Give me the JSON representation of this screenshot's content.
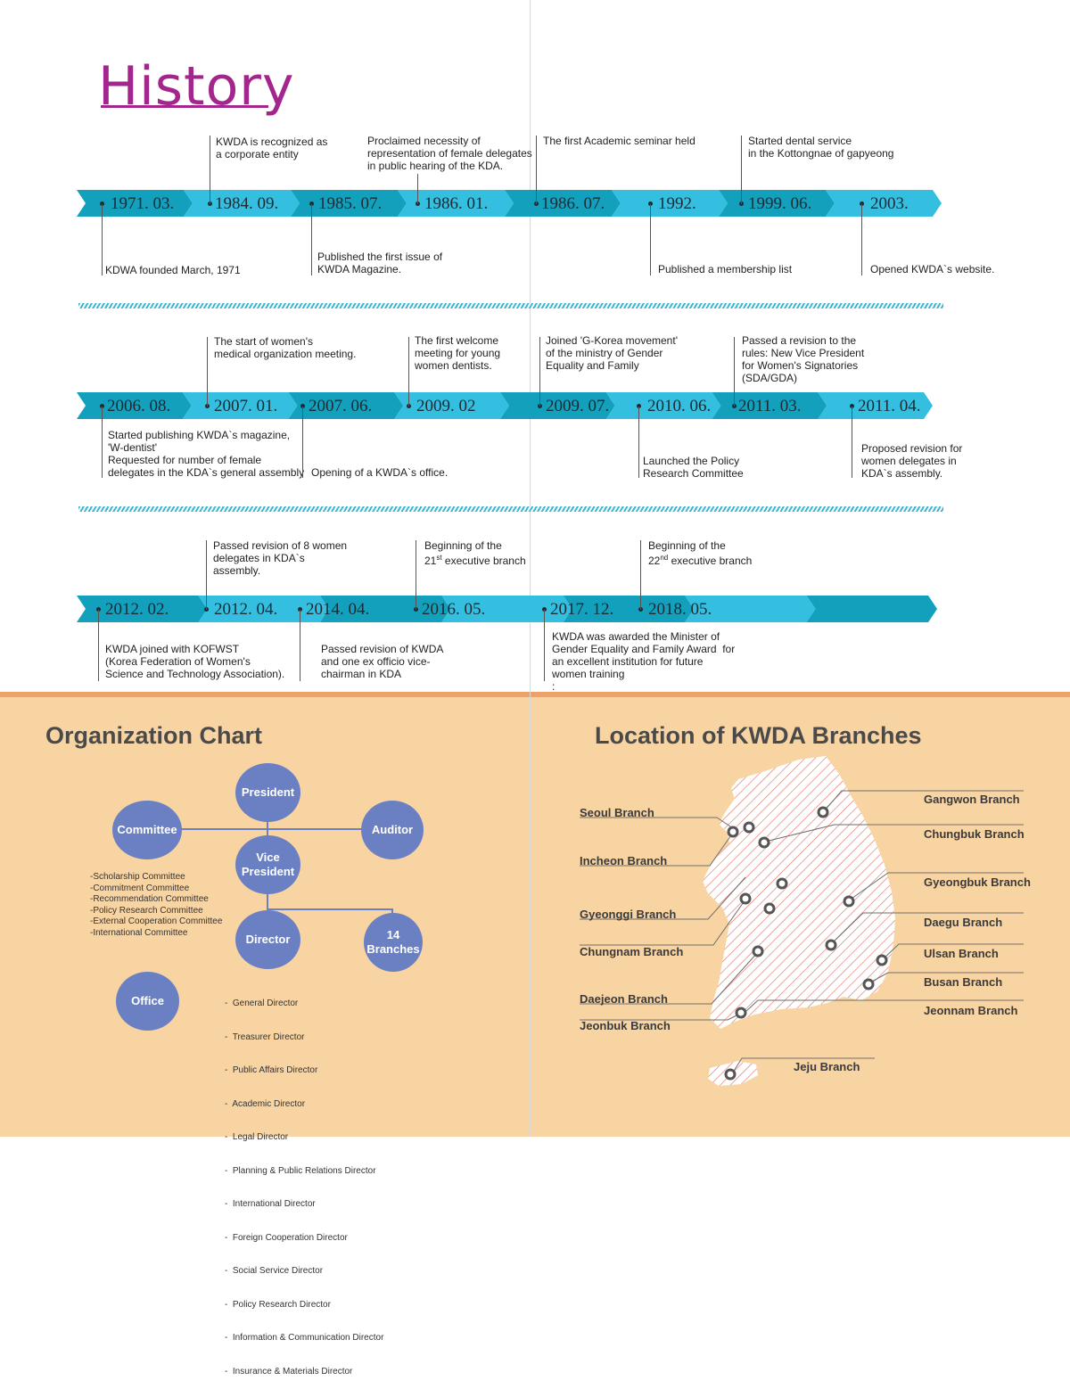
{
  "history": {
    "title": "History",
    "rows": [
      {
        "dates": [
          "1971. 03.",
          "1984. 09.",
          "1985. 07.",
          "1986. 01.",
          "1986. 07.",
          "1992.",
          "1999. 06.",
          "2003."
        ],
        "events": [
          "KDWA founded March, 1971",
          "KWDA is recognized as\na corporate entity",
          "Published the first issue of\nKWDA Magazine.",
          "Proclaimed necessity of\nrepresentation of female delegates\nin public hearing of the KDA.",
          "The first Academic seminar held",
          "Published a membership list",
          "Started dental service\nin the Kottongnae of gapyeong",
          "Opened KWDA`s website."
        ]
      },
      {
        "dates": [
          "2006. 08.",
          "2007. 01.",
          "2007. 06.",
          "2009. 02",
          "2009. 07.",
          "2010. 06.",
          "2011. 03.",
          "2011. 04."
        ],
        "events": [
          "Started publishing KWDA`s magazine,\n'W-dentist'\nRequested for number of female\ndelegates in the KDA`s general assembly",
          "The start of women's\nmedical organization meeting.",
          "Opening of a KWDA`s office.",
          "The first welcome\nmeeting for young\nwomen dentists.",
          "Joined 'G-Korea movement'\nof the ministry of Gender\nEquality and Family",
          "Launched the Policy\nResearch Committee",
          "Passed a revision to the\nrules: New Vice President\nfor Women's Signatories\n(SDA/GDA)",
          "Proposed revision for\nwomen delegates in\nKDA`s assembly."
        ]
      },
      {
        "dates": [
          "2012. 02.",
          "2012. 04.",
          "2014. 04.",
          "2016. 05.",
          "2017. 12.",
          "2018. 05."
        ],
        "events": [
          "KWDA joined with KOFWST\n(Korea Federation of Women's\nScience and Technology Association).",
          "Passed revision of 8 women\ndelegates in KDA`s\nassembly.",
          "Passed revision of KWDA\nand one ex officio vice-\nchairman in KDA",
          "Beginning of the\n21st executive branch",
          "KWDA was awarded the Minister of\nGender Equality and Family Award  for\nan excellent institution for future\nwomen training\n:",
          "Beginning of the\n22nd executive branch"
        ]
      }
    ]
  },
  "org": {
    "title": "Organization Chart",
    "nodes": {
      "president": "President",
      "committee": "Committee",
      "auditor": "Auditor",
      "vice_president": "Vice\nPresident",
      "director": "Director",
      "branches": "14\nBranches",
      "office": "Office"
    },
    "committees": [
      "-Scholarship Committee",
      "-Commitment Committee",
      "-Recommendation Committee",
      "-Policy Research Committee",
      "-External Cooperation Committee",
      "-International Committee"
    ],
    "directors": [
      "-  General Director",
      "-  Treasurer Director",
      "-  Public Affairs Director",
      "-  Academic Director",
      "-  Legal Director",
      "-  Planning & Public Relations Director",
      "-  International Director",
      "-  Foreign Cooperation Director",
      "-  Social Service Director",
      "-  Policy Research Director",
      "-  Information & Communication Director",
      "-  Insurance & Materials Director"
    ]
  },
  "branches": {
    "title": "Location of KWDA Branches",
    "left": [
      "Seoul Branch",
      "Incheon Branch",
      "Gyeonggi Branch",
      "Chungnam Branch",
      "Daejeon Branch",
      "Jeonbuk Branch"
    ],
    "right": [
      "Gangwon Branch",
      "Chungbuk Branch",
      "Gyeongbuk Branch",
      "Daegu Branch",
      "Ulsan Branch",
      "Busan Branch",
      "Jeonnam Branch"
    ],
    "jeju": "Jeju Branch"
  },
  "colors": {
    "title": "#a3268c",
    "band_light": "#34bfe0",
    "band_dark": "#13a0bd",
    "node": "#6b80c2",
    "bottom_bg": "#f9d4a3",
    "bottom_border": "#efa06b",
    "map_hatch": "#e2766b"
  }
}
